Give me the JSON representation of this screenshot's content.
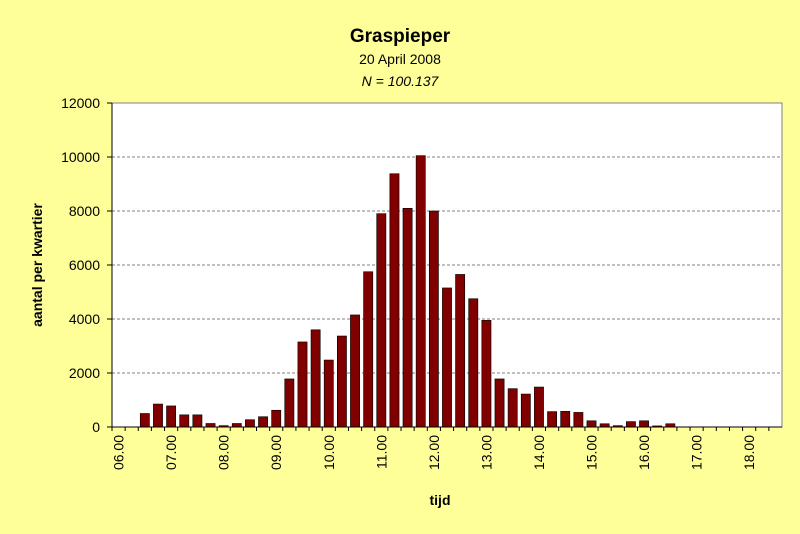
{
  "chart_data": {
    "type": "bar",
    "title": "Graspieper",
    "subtitle": "20 April 2008",
    "annotation": "N = 100.137",
    "x_label": "tijd",
    "y_label": "aantal per kwartier",
    "categories": [
      "06.00",
      null,
      null,
      null,
      "07.00",
      null,
      null,
      null,
      "08.00",
      null,
      null,
      null,
      "09.00",
      null,
      null,
      null,
      "10.00",
      null,
      null,
      null,
      "11.00",
      null,
      null,
      null,
      "12.00",
      null,
      null,
      null,
      "13.00",
      null,
      null,
      null,
      "14.00",
      null,
      null,
      null,
      "15.00",
      null,
      null,
      null,
      "16.00",
      null,
      null,
      null,
      "17.00",
      null,
      null,
      null,
      "18.00",
      null,
      null
    ],
    "values": [
      0,
      0,
      500,
      850,
      780,
      450,
      450,
      130,
      50,
      130,
      270,
      380,
      620,
      1780,
      3150,
      3600,
      2480,
      3370,
      4150,
      5750,
      7900,
      9380,
      8100,
      10050,
      8000,
      5150,
      5650,
      4750,
      3950,
      1780,
      1420,
      1220,
      1480,
      570,
      580,
      540,
      230,
      120,
      50,
      200,
      230,
      40,
      120,
      0,
      0,
      0,
      0,
      0,
      0,
      0,
      0
    ],
    "color": "#800000",
    "ylim": [
      0,
      12000
    ],
    "yticks": [
      0,
      2000,
      4000,
      6000,
      8000,
      10000,
      12000
    ],
    "grid": true
  }
}
